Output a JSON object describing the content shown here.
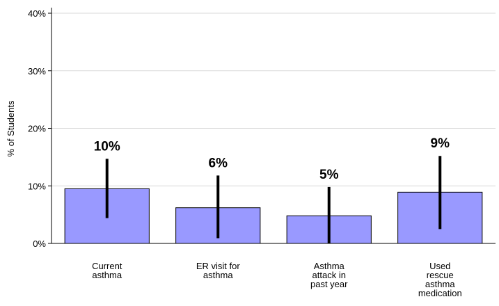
{
  "chart_data": {
    "type": "bar",
    "title": "",
    "xlabel": "",
    "ylabel": "% of Students",
    "ylim": [
      0,
      40
    ],
    "yticks": [
      0,
      10,
      20,
      30,
      40
    ],
    "ytick_labels": [
      "0%",
      "10%",
      "20%",
      "30%",
      "40%"
    ],
    "grid": true,
    "categories": [
      [
        "Current",
        "asthma"
      ],
      [
        "ER visit for",
        "asthma"
      ],
      [
        "Asthma",
        "attack in",
        "past year"
      ],
      [
        "Used",
        "rescue",
        "asthma",
        "medication"
      ]
    ],
    "values": [
      9.5,
      6.2,
      4.8,
      8.9
    ],
    "error_low": [
      4.4,
      0.9,
      0.0,
      2.5
    ],
    "error_high": [
      14.7,
      11.8,
      9.8,
      15.2
    ],
    "data_labels": [
      "10%",
      "6%",
      "5%",
      "9%"
    ],
    "colors": {
      "bar_fill": "#9999ff",
      "bar_stroke": "#000000",
      "error_bar": "#000000",
      "grid": "#d9d9d9"
    }
  }
}
